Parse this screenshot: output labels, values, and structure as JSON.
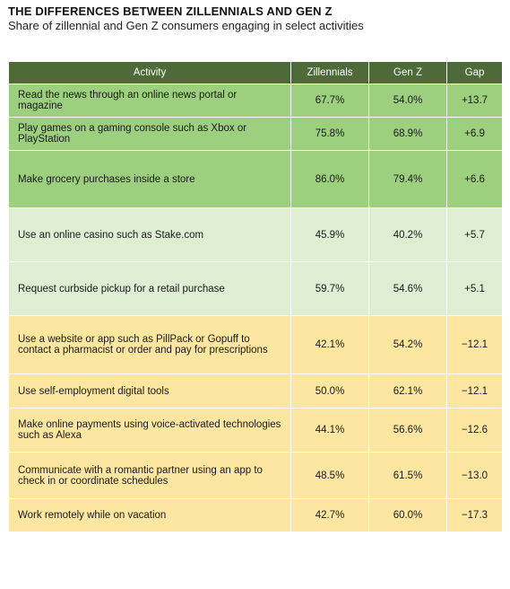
{
  "title": "THE DIFFERENCES BETWEEN ZILLENNIALS AND GEN Z",
  "subtitle": "Share of zillennial and Gen Z consumers engaging in select activities",
  "colors": {
    "header": "#4c6b38",
    "strong_positive": "#9ccf7e",
    "mild_positive": "#ddeed2",
    "negative": "#fde6a0"
  },
  "chart_data": {
    "type": "table",
    "columns": [
      "Activity",
      "Zillennials",
      "Gen Z",
      "Gap"
    ],
    "rows": [
      {
        "activity": "Read the news through an online news portal or magazine",
        "zillennials": "67.7%",
        "genz": "54.0%",
        "gap": "+13.7",
        "tier": "strong"
      },
      {
        "activity": "Play games on a gaming console such as Xbox or PlayStation",
        "zillennials": "75.8%",
        "genz": "68.9%",
        "gap": "+6.9",
        "tier": "strong"
      },
      {
        "activity": "Make grocery purchases inside a store",
        "zillennials": "86.0%",
        "genz": "79.4%",
        "gap": "+6.6",
        "tier": "strong"
      },
      {
        "activity": "Use an online casino such as Stake.com",
        "zillennials": "45.9%",
        "genz": "40.2%",
        "gap": "+5.7",
        "tier": "light"
      },
      {
        "activity": "Request curbside pickup for a retail purchase",
        "zillennials": "59.7%",
        "genz": "54.6%",
        "gap": "+5.1",
        "tier": "light"
      },
      {
        "activity": "Use a website or app such as PillPack or Gopuff to contact a pharmacist or order and pay for prescriptions",
        "zillennials": "42.1%",
        "genz": "54.2%",
        "gap": "−12.1",
        "tier": "neg"
      },
      {
        "activity": "Use self-employment digital tools",
        "zillennials": "50.0%",
        "genz": "62.1%",
        "gap": "−12.1",
        "tier": "neg"
      },
      {
        "activity": "Make online payments using voice-activated technologies such as Alexa",
        "zillennials": "44.1%",
        "genz": "56.6%",
        "gap": "−12.6",
        "tier": "neg"
      },
      {
        "activity": "Communicate with a romantic partner using an app to check in or coordinate schedules",
        "zillennials": "48.5%",
        "genz": "61.5%",
        "gap": "−13.0",
        "tier": "neg"
      },
      {
        "activity": "Work remotely while on vacation",
        "zillennials": "42.7%",
        "genz": "60.0%",
        "gap": "−17.3",
        "tier": "neg"
      }
    ]
  }
}
